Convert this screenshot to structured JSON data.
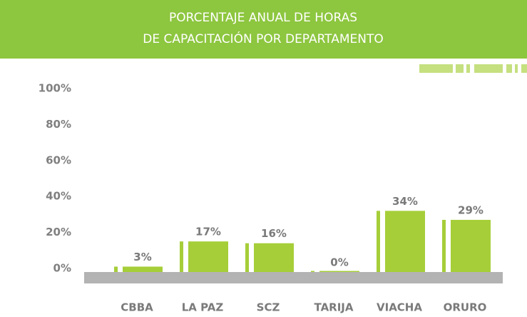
{
  "chart_data": {
    "type": "bar",
    "title": [
      "PORCENTAJE ANUAL DE HORAS",
      "DE CAPACITACIÓN POR DEPARTAMENTO"
    ],
    "categories": [
      "CBBA",
      "LA PAZ",
      "SCZ",
      "TARIJA",
      "VIACHA",
      "ORURO"
    ],
    "values": [
      3,
      17,
      16,
      0,
      34,
      29
    ],
    "value_labels": [
      "3%",
      "17%",
      "16%",
      "0%",
      "34%",
      "29%"
    ],
    "color": "#a6ce39",
    "ylim": [
      0,
      100
    ],
    "yticks": [
      {
        "value": 0,
        "label": "0%"
      },
      {
        "value": 20,
        "label": "20%"
      },
      {
        "value": 40,
        "label": "40%"
      },
      {
        "value": 60,
        "label": "60%"
      },
      {
        "value": 80,
        "label": "80%"
      },
      {
        "value": 100,
        "label": "100%"
      }
    ]
  }
}
